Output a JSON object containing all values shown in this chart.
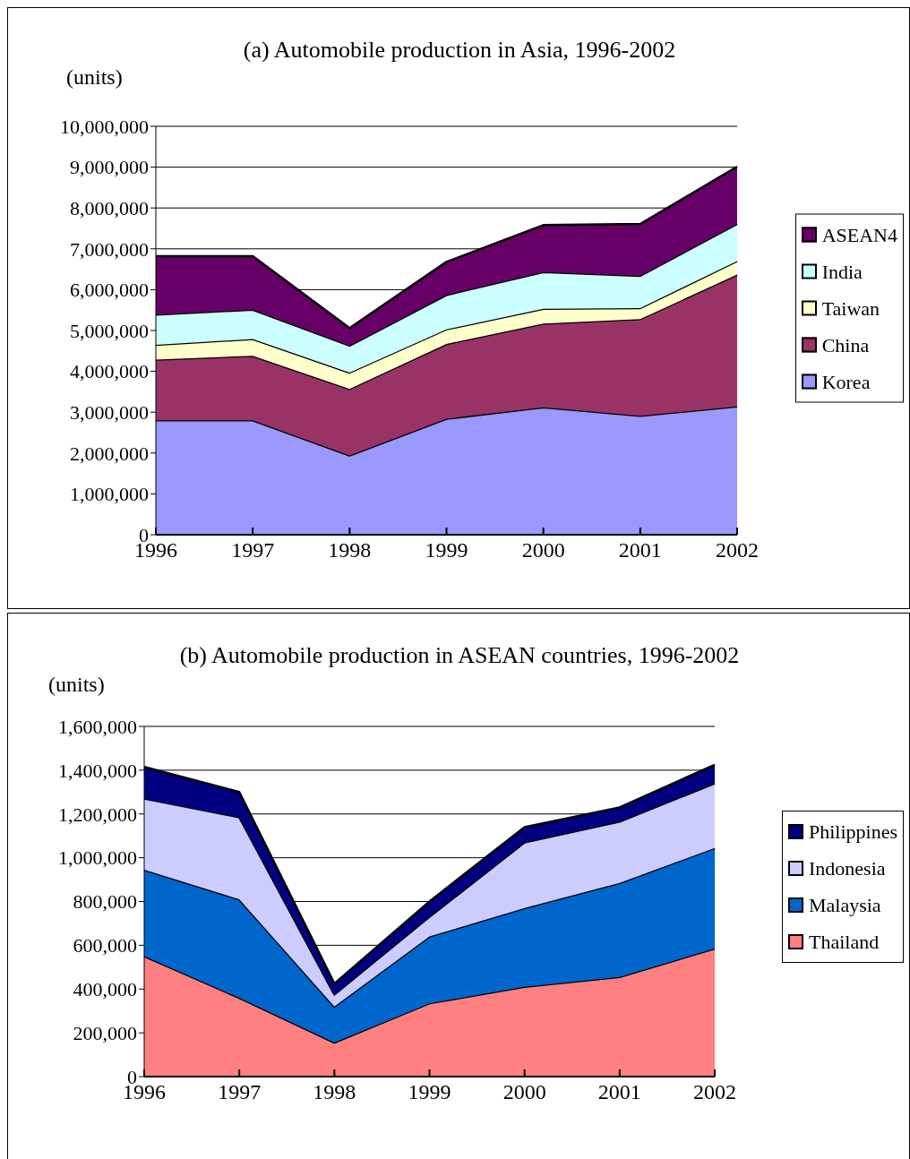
{
  "chart_data": [
    {
      "type": "area",
      "title": "(a) Automobile production in Asia, 1996-2002",
      "ylabel": "(units)",
      "categories": [
        "1996",
        "1997",
        "1998",
        "1999",
        "2000",
        "2001",
        "2002"
      ],
      "stacked": true,
      "series": [
        {
          "name": "Korea",
          "color": "#9999ff",
          "values": [
            2800000,
            2800000,
            1940000,
            2840000,
            3120000,
            2910000,
            3140000
          ]
        },
        {
          "name": "China",
          "color": "#993366",
          "values": [
            1490000,
            1580000,
            1630000,
            1830000,
            2050000,
            2370000,
            3230000
          ]
        },
        {
          "name": "Taiwan",
          "color": "#ffffcc",
          "values": [
            360000,
            410000,
            400000,
            360000,
            360000,
            270000,
            330000
          ]
        },
        {
          "name": "India",
          "color": "#ccffff",
          "values": [
            740000,
            720000,
            660000,
            840000,
            900000,
            790000,
            910000
          ]
        },
        {
          "name": "ASEAN4",
          "color": "#660066",
          "values": [
            1430000,
            1310000,
            430000,
            810000,
            1150000,
            1270000,
            1400000
          ]
        }
      ],
      "ylim": [
        0,
        10000000
      ],
      "yticks": [
        0,
        {
          "value": 1000000,
          "label": "1,000,000"
        },
        {
          "value": 2000000,
          "label": "2,000,000"
        },
        {
          "value": 3000000,
          "label": "3,000,000"
        },
        {
          "value": 4000000,
          "label": "4,000,000"
        },
        {
          "value": 5000000,
          "label": "5,000,000"
        },
        {
          "value": 6000000,
          "label": "6,000,000"
        },
        {
          "value": 7000000,
          "label": "7,000,000"
        },
        {
          "value": 8000000,
          "label": "8,000,000"
        },
        {
          "value": 9000000,
          "label": "9,000,000"
        },
        {
          "value": 10000000,
          "label": "10,000,000"
        }
      ],
      "grid": "y",
      "legend": "right"
    },
    {
      "type": "area",
      "title": "(b) Automobile production in ASEAN countries, 1996-2002",
      "ylabel": "(units)",
      "categories": [
        "1996",
        "1997",
        "1998",
        "1999",
        "2000",
        "2001",
        "2002"
      ],
      "stacked": true,
      "series": [
        {
          "name": "Thailand",
          "color": "#ff8080",
          "values": [
            550000,
            360000,
            155000,
            335000,
            410000,
            455000,
            585000
          ]
        },
        {
          "name": "Malaysia",
          "color": "#0066cc",
          "values": [
            395000,
            450000,
            165000,
            305000,
            360000,
            430000,
            460000
          ]
        },
        {
          "name": "Indonesia",
          "color": "#ccccff",
          "values": [
            325000,
            375000,
            55000,
            90000,
            300000,
            280000,
            295000
          ]
        },
        {
          "name": "Philippines",
          "color": "#000080",
          "values": [
            145000,
            115000,
            50000,
            70000,
            70000,
            65000,
            85000
          ]
        }
      ],
      "ylim": [
        0,
        1600000
      ],
      "yticks": [
        0,
        {
          "value": 200000,
          "label": "200,000"
        },
        {
          "value": 400000,
          "label": "400,000"
        },
        {
          "value": 600000,
          "label": "600,000"
        },
        {
          "value": 800000,
          "label": "800,000"
        },
        {
          "value": 1000000,
          "label": "1,000,000"
        },
        {
          "value": 1200000,
          "label": "1,200,000"
        },
        {
          "value": 1400000,
          "label": "1,400,000"
        },
        {
          "value": 1600000,
          "label": "1,600,000"
        }
      ],
      "grid": "y",
      "legend": "right"
    }
  ]
}
